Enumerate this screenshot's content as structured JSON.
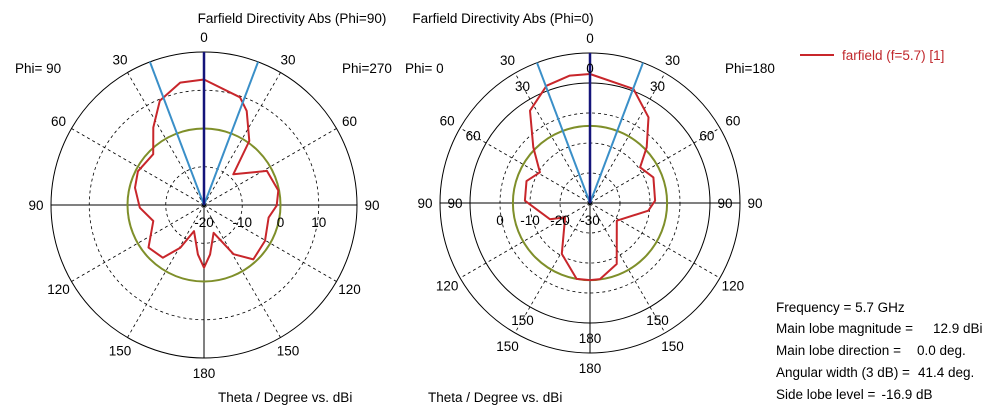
{
  "chart_data": [
    {
      "type": "polar-line",
      "title": "Farfield Directivity Abs (Phi=90)",
      "phi_left_label": "Phi= 90",
      "phi_right_label": "Phi=270",
      "axis_caption": "Theta / Degree vs. dBi",
      "r_range": [
        -20,
        20
      ],
      "ring_values": [
        -10,
        0,
        10
      ],
      "ring_labels": [
        "-20",
        "-10",
        "0",
        "10"
      ],
      "angle_labels_outer": [
        "0",
        "30",
        "60",
        "90",
        "120",
        "150",
        "180",
        "150",
        "120",
        "90",
        "60",
        "30"
      ],
      "angle_labels_inner": [],
      "reference_level_db": 0,
      "main_lobe_direction_deg": 0,
      "beamwidth_deg": 41.4,
      "series": [
        {
          "name": "farfield (f=5.7) [1]",
          "theta_deg": [
            0,
            18.5,
            24.4,
            35.3,
            43.7,
            61.5,
            79,
            90.5,
            101,
            120.5,
            137.8,
            149,
            161,
            173,
            180,
            187,
            201,
            209,
            218,
            232.5,
            252.5,
            267.6,
            284,
            297,
            315,
            326.8,
            337,
            349,
            360
          ],
          "values_dbi": [
            12.8,
            9.7,
            7.0,
            0.5,
            -8.9,
            -1.3,
            -0.2,
            -1.0,
            -2.8,
            -1.5,
            -0.8,
            -5,
            -12.3,
            -7,
            -3.6,
            -7,
            -12.7,
            -7.2,
            -2.5,
            -1.7,
            -6.1,
            -3.2,
            -1.4,
            -0.6,
            -1.2,
            4.2,
            9.6,
            12.6,
            12.8
          ]
        }
      ]
    },
    {
      "type": "polar-line",
      "title": "Farfield Directivity Abs (Phi=0)",
      "phi_left_label": "Phi=  0",
      "phi_right_label": "Phi=180",
      "axis_caption": "Theta / Degree vs. dBi",
      "r_range": [
        -30,
        20
      ],
      "ring_values": [
        -20,
        -10,
        0
      ],
      "ring_labels": [
        "0",
        "-10",
        "-20",
        "-30"
      ],
      "angle_labels_outer": [
        "0",
        "30",
        "60",
        "90",
        "120",
        "150",
        "180",
        "150",
        "120",
        "90",
        "60",
        "30"
      ],
      "angle_labels_inner": [
        "0",
        "30",
        "60",
        "90",
        "",
        "150",
        "180",
        "150",
        "",
        "90",
        "60",
        "30"
      ],
      "reference_level_db": -4.3,
      "main_lobe_direction_deg": 0,
      "beamwidth_deg": 41.4,
      "series": [
        {
          "name": "farfield (f=5.7) [1]",
          "theta_deg": [
            0,
            20.8,
            34.3,
            45.5,
            54.5,
            68,
            88,
            97.5,
            123.5,
            156.4,
            172.5,
            180,
            190,
            209,
            240,
            248,
            272,
            289,
            301.5,
            314.5,
            327,
            339.7,
            351,
            360
          ],
          "values_dbi": [
            13.0,
            10.7,
            4.6,
            -3.5,
            -9.5,
            -7.2,
            -8.3,
            -10.4,
            -19.3,
            -7.8,
            -4.4,
            -4.3,
            -4.3,
            -10.6,
            -20.4,
            -15.6,
            -8.3,
            -7.6,
            -10.4,
            -3.5,
            6.7,
            11.7,
            13.0,
            13.0
          ]
        }
      ]
    }
  ],
  "legend": {
    "label": "farfield (f=5.7) [1]"
  },
  "info": [
    {
      "label": "Frequency = 5.7 GHz",
      "value": ""
    },
    {
      "label": "Main lobe magnitude =",
      "value": "12.9 dBi"
    },
    {
      "label": "Main lobe direction =",
      "value": "0.0 deg."
    },
    {
      "label": "Angular width (3 dB) =",
      "value": "41.4 deg."
    },
    {
      "label": "Side lobe level =",
      "value": "-16.9 dB"
    }
  ],
  "colors": {
    "curve": "#c8262b",
    "main_lobe": "#14147a",
    "beamwidth": "#3a8fc8",
    "reference": "#7f8f2a",
    "legend_text": "#c0282d"
  }
}
